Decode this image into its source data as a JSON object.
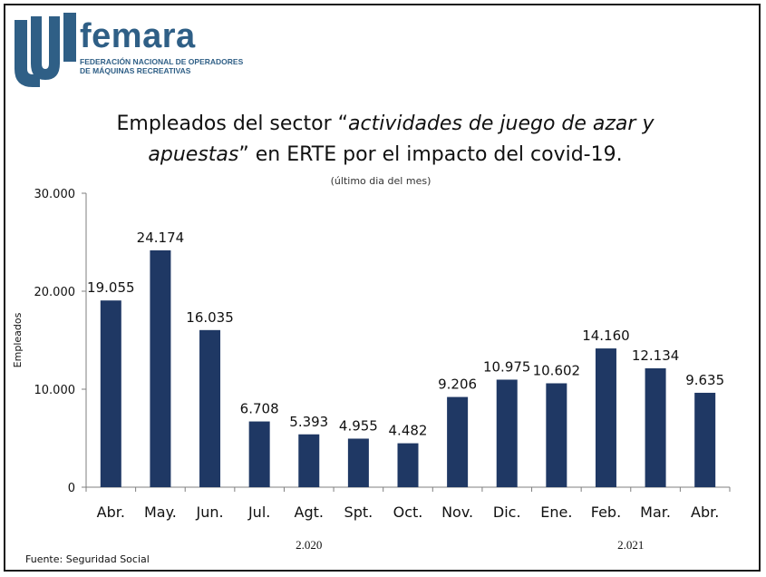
{
  "logo": {
    "name": "femara",
    "subtitle_line1": "FEDERACIÓN NACIONAL DE OPERADORES",
    "subtitle_line2": "DE MÁQUINAS RECREATIVAS",
    "color": "#2f5f86"
  },
  "title_part1": "Empleados del sector “",
  "title_italic1": "actividades de juego de azar y",
  "title_italic2": "apuestas",
  "title_part2": "” en ERTE por el impacto del covid-19.",
  "subtitle": "(último dia del mes)",
  "source": "Fuente: Seguridad Social",
  "chart_data": {
    "type": "bar",
    "categories": [
      "Abr.",
      "May.",
      "Jun.",
      "Jul.",
      "Agt.",
      "Spt.",
      "Oct.",
      "Nov.",
      "Dic.",
      "Ene.",
      "Feb.",
      "Mar.",
      "Abr."
    ],
    "values": [
      19055,
      24174,
      16035,
      6708,
      5393,
      4955,
      4482,
      9206,
      10975,
      10602,
      14160,
      12134,
      9635
    ],
    "value_labels": [
      "19.055",
      "24.174",
      "16.035",
      "6.708",
      "5.393",
      "4.955",
      "4.482",
      "9.206",
      "10.975",
      "10.602",
      "14.160",
      "12.134",
      "9.635"
    ],
    "ylabel": "Empleados",
    "ylim": [
      0,
      30000
    ],
    "yticks": [
      0,
      10000,
      20000,
      30000
    ],
    "ytick_labels": [
      "0",
      "10.000",
      "20.000",
      "30.000"
    ],
    "year_groups": [
      {
        "label": "2.020",
        "from": 0,
        "to": 8
      },
      {
        "label": "2.021",
        "from": 9,
        "to": 12
      }
    ],
    "bar_color": "#1f3864",
    "grid": false
  }
}
